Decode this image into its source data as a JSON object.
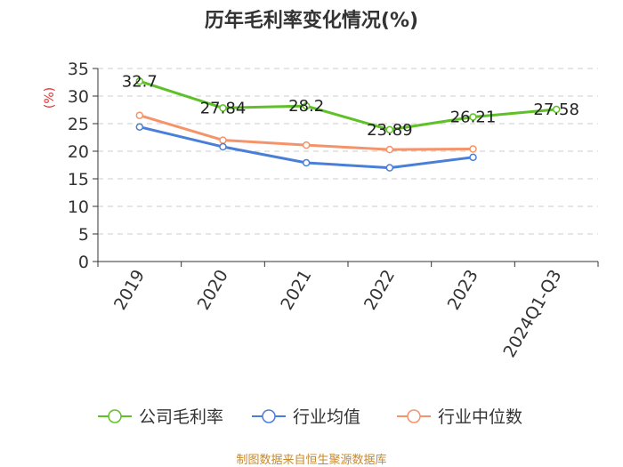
{
  "chart_data": {
    "type": "line",
    "title": "历年毛利率变化情况(%)",
    "ylabel": "(%)",
    "ylim": [
      0,
      35
    ],
    "yticks": [
      0,
      5,
      10,
      15,
      20,
      25,
      30,
      35
    ],
    "categories": [
      "2019",
      "2020",
      "2021",
      "2022",
      "2023",
      "2024Q1-Q3"
    ],
    "grid": true,
    "legend_position": "bottom",
    "series": [
      {
        "name": "公司毛利率",
        "color": "#5fc128",
        "values": [
          32.7,
          27.84,
          28.2,
          23.89,
          26.21,
          27.58
        ],
        "labels": [
          "32.7",
          "27.84",
          "28.2",
          "23.89",
          "26.21",
          "27.58"
        ]
      },
      {
        "name": "行业均值",
        "color": "#4a7fd8",
        "values": [
          24.4,
          20.8,
          17.9,
          17.0,
          18.9,
          null
        ]
      },
      {
        "name": "行业中位数",
        "color": "#f5946a",
        "values": [
          26.5,
          22.0,
          21.1,
          20.3,
          20.4,
          null
        ]
      }
    ]
  },
  "footer": "制图数据来自恒生聚源数据库"
}
